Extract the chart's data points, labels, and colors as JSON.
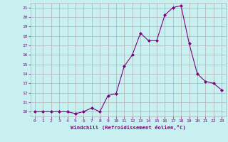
{
  "x": [
    0,
    1,
    2,
    3,
    4,
    5,
    6,
    7,
    8,
    9,
    10,
    11,
    12,
    13,
    14,
    15,
    16,
    17,
    18,
    19,
    20,
    21,
    22,
    23
  ],
  "y": [
    10.0,
    10.0,
    10.0,
    10.0,
    10.0,
    9.8,
    10.0,
    10.4,
    10.0,
    11.7,
    11.9,
    14.8,
    16.0,
    18.3,
    17.5,
    17.5,
    20.2,
    21.0,
    21.2,
    17.2,
    14.0,
    13.2,
    13.0,
    12.3
  ],
  "line_color": "#800080",
  "marker": "D",
  "markersize": 2.0,
  "linewidth": 0.8,
  "bg_color": "#c8f0f0",
  "grid_color": "#b0b0b0",
  "xlabel": "Windchill (Refroidissement éolien,°C)",
  "xlabel_color": "#800080",
  "tick_color": "#800080",
  "xlim": [
    -0.5,
    23.5
  ],
  "ylim": [
    9.5,
    21.5
  ],
  "yticks": [
    10,
    11,
    12,
    13,
    14,
    15,
    16,
    17,
    18,
    19,
    20,
    21
  ],
  "xticks": [
    0,
    1,
    2,
    3,
    4,
    5,
    6,
    7,
    8,
    9,
    10,
    11,
    12,
    13,
    14,
    15,
    16,
    17,
    18,
    19,
    20,
    21,
    22,
    23
  ]
}
